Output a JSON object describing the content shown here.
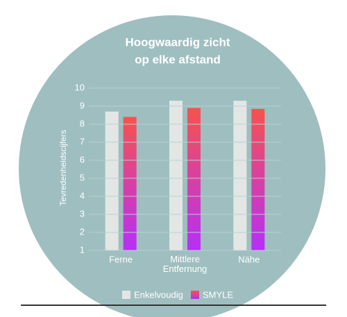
{
  "chart_data": {
    "type": "bar",
    "title": [
      "Hoogwaardig zicht",
      "op elke afstand"
    ],
    "y_label": "Tevredenheidscijfers",
    "categories": [
      "Ferne",
      "Mittlere\nEntfernung",
      "Nähe"
    ],
    "series": [
      {
        "name": "Enkelvoudig",
        "color": "#e4e6e6",
        "values": [
          8.7,
          9.3,
          9.3
        ]
      },
      {
        "name": "SMYLE",
        "color": [
          "#f6534d",
          "#b62ff7"
        ],
        "values": [
          8.4,
          8.9,
          8.85
        ]
      }
    ],
    "ylim": [
      1,
      10
    ],
    "yticks": [
      1,
      2,
      3,
      4,
      5,
      6,
      7,
      8,
      9,
      10
    ],
    "grid": true,
    "background": "#9fbec0",
    "grid_color": "#b8d0d1",
    "text_color": "#ffffff"
  }
}
